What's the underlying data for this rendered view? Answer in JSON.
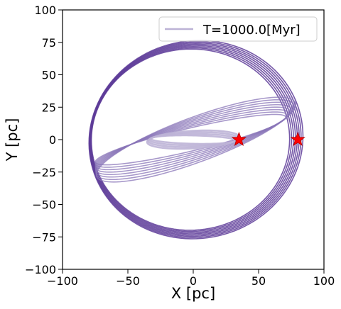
{
  "chart_data": {
    "type": "line",
    "xlabel": "X [pc]",
    "ylabel": "Y [pc]",
    "xlim": [
      -100,
      100
    ],
    "ylim": [
      -100,
      100
    ],
    "xticks": [
      -100,
      -50,
      0,
      50,
      100
    ],
    "yticks": [
      -100,
      -75,
      -50,
      -25,
      0,
      25,
      50,
      75,
      100
    ],
    "xtick_labels": [
      "−100",
      "−50",
      "0",
      "50",
      "100"
    ],
    "ytick_labels": [
      "−100",
      "−75",
      "−50",
      "−25",
      "0",
      "25",
      "50",
      "75",
      "100"
    ],
    "grid": false,
    "legend": {
      "position": "top-right",
      "entries": [
        "T=1000.0[Myr]"
      ]
    },
    "series": [
      {
        "name": "T=1000.0[Myr]",
        "description_of_shape": "precessing orbits",
        "orbits": [
          {
            "kind": "outer-ring",
            "rx": 79,
            "ry": 73,
            "tilt_deg": 8,
            "copies": 8,
            "color": "#5e3c99",
            "opacity": 0.85
          },
          {
            "kind": "mid-ellipse",
            "rx": 78,
            "ry": 13,
            "tilt_deg": 17,
            "copies": 8,
            "color": "#8a75b8",
            "opacity": 0.75
          },
          {
            "kind": "inner-ellipse",
            "rx": 34,
            "ry": 5,
            "tilt_deg": 1,
            "copies": 4,
            "color": "#bcb2d6",
            "opacity": 0.9
          }
        ]
      }
    ],
    "markers": [
      {
        "label": "star",
        "x": 35,
        "y": 0,
        "color": "#ff0000"
      },
      {
        "label": "star",
        "x": 80,
        "y": 0,
        "color": "#ff0000"
      }
    ],
    "legend_line_color": "#bcb2d6"
  }
}
